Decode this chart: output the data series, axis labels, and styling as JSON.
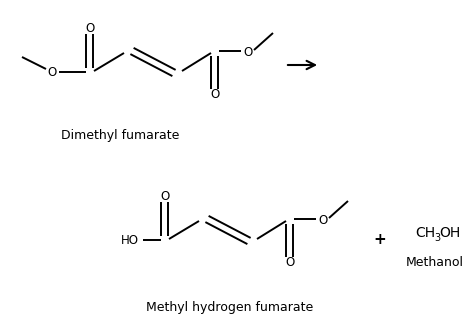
{
  "bg_color": "#ffffff",
  "line_color": "#000000",
  "text_color": "#000000",
  "label_dimethyl": "Dimethyl fumarate",
  "label_methyl": "Methyl hydrogen fumarate",
  "label_methanol": "Methanol",
  "font_size_label": 9,
  "font_size_atom": 8.5
}
